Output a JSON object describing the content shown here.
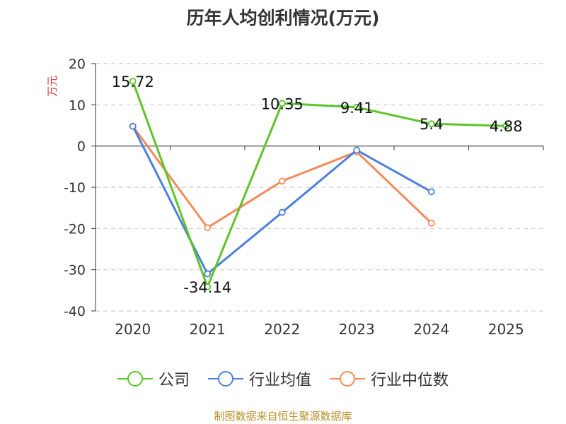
{
  "title": "历年人均创利情况(万元)",
  "y_unit": "万元",
  "source": "制图数据来自恒生聚源数据库",
  "chart_data": {
    "type": "line",
    "title": "历年人均创利情况(万元)",
    "ylabel": "万元",
    "xlabel": "",
    "categories": [
      "2020",
      "2021",
      "2022",
      "2023",
      "2024",
      "2025"
    ],
    "ylim": [
      -40,
      20
    ],
    "yticks": [
      20,
      10,
      0,
      -10,
      -20,
      -30,
      -40
    ],
    "grid": true,
    "legend_position": "bottom",
    "series": [
      {
        "name": "公司",
        "color": "#5cc42b",
        "values": [
          15.72,
          -34.14,
          10.35,
          9.41,
          5.4,
          4.88
        ],
        "labels": [
          "15.72",
          "-34.14",
          "10.35",
          "9.41",
          "5.4",
          "4.88"
        ]
      },
      {
        "name": "行业均值",
        "color": "#4e7fdc",
        "values": [
          4.8,
          -31.0,
          -16.1,
          -1.0,
          -11.1,
          null
        ]
      },
      {
        "name": "行业中位数",
        "color": "#f28c5a",
        "values": [
          4.8,
          -19.8,
          -8.5,
          -1.4,
          -18.7,
          null
        ]
      }
    ]
  }
}
